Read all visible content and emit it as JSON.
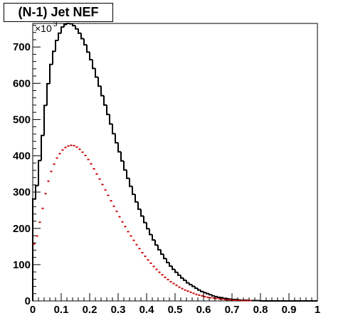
{
  "chart_data": {
    "type": "histogram",
    "title": "(N-1) Jet NEF",
    "xlabel": "",
    "ylabel": "",
    "xlim": [
      0,
      1
    ],
    "ylim": [
      0,
      765
    ],
    "y_multiplier": {
      "base": "×10",
      "exponent": "3"
    },
    "x_ticks": [
      "0",
      "0.1",
      "0.2",
      "0.3",
      "0.4",
      "0.5",
      "0.6",
      "0.7",
      "0.8",
      "0.9",
      "1"
    ],
    "x_tick_values": [
      0,
      0.1,
      0.2,
      0.3,
      0.4,
      0.5,
      0.6,
      0.7,
      0.8,
      0.9,
      1.0
    ],
    "y_ticks": [
      "0",
      "100",
      "200",
      "300",
      "400",
      "500",
      "600",
      "700"
    ],
    "y_tick_values": [
      0,
      100,
      200,
      300,
      400,
      500,
      600,
      700
    ],
    "bins": 100,
    "series": [
      {
        "style": "step-line",
        "color": "#000000",
        "values": [
          281,
          318,
          387,
          456,
          539,
          599,
          652,
          688,
          718,
          738,
          755,
          762,
          765,
          764,
          759,
          750,
          738,
          723,
          706,
          686,
          665,
          641,
          617,
          592,
          566,
          540,
          514,
          488,
          461,
          436,
          411,
          386,
          361,
          338,
          316,
          294,
          273,
          253,
          234,
          216,
          199,
          183,
          168,
          154,
          141,
          129,
          117,
          106,
          96,
          87,
          79,
          71,
          63,
          57,
          50,
          45,
          40,
          35,
          30,
          26,
          23,
          20,
          17,
          14,
          12,
          10,
          9,
          7,
          6,
          5,
          4,
          4,
          3,
          2,
          2,
          2,
          1,
          1,
          1,
          1,
          0,
          0,
          0,
          0,
          0,
          0,
          0,
          0,
          0,
          0,
          0,
          0,
          0,
          0,
          0,
          0,
          0,
          0,
          0,
          0
        ]
      },
      {
        "style": "points",
        "color": "#cc0000",
        "values": [
          157,
          179,
          217,
          255,
          296,
          330,
          357,
          377,
          394,
          406,
          416,
          423,
          427,
          429,
          428,
          424,
          418,
          410,
          401,
          390,
          378,
          364,
          350,
          336,
          321,
          306,
          291,
          276,
          261,
          247,
          232,
          218,
          205,
          191,
          179,
          167,
          155,
          144,
          133,
          123,
          113,
          104,
          95,
          87,
          79,
          72,
          65,
          59,
          53,
          48,
          43,
          38,
          34,
          30,
          27,
          24,
          21,
          18,
          16,
          14,
          12,
          10,
          9,
          8,
          7,
          6,
          5,
          4,
          3,
          3,
          2,
          2,
          2,
          1,
          1,
          1,
          1,
          0,
          0,
          0,
          0,
          0,
          0,
          0,
          0,
          0,
          0,
          0,
          0,
          0,
          0,
          0,
          0,
          0,
          0,
          0,
          0,
          0,
          0,
          0
        ]
      }
    ]
  }
}
